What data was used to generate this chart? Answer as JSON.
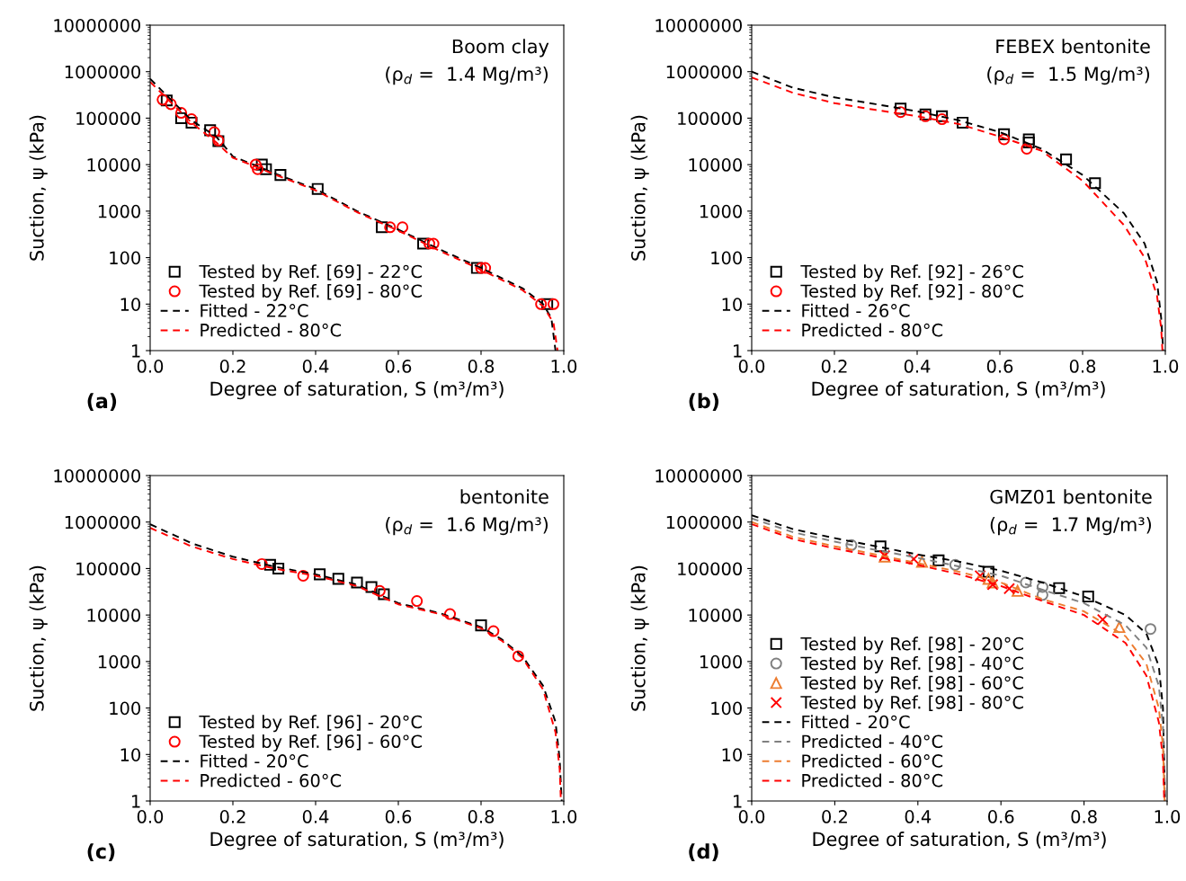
{
  "chart_data": [
    {
      "type": "scatter",
      "title": "(a)",
      "xlabel": "Degree of saturation, S (m³/m³)",
      "ylabel": "Suction, ψ (kPa)",
      "annotations": [
        "Boom clay",
        "(ρ$_{d}$ =  1.4 Mg/m³)"
      ],
      "log": "y",
      "xlim": [
        0,
        1
      ],
      "xticks": [
        {
          "value": 0,
          "label": "0.0"
        },
        {
          "value": 0.2,
          "label": "0.2"
        },
        {
          "value": 0.4,
          "label": "0.4"
        },
        {
          "value": 0.6,
          "label": "0.6"
        },
        {
          "value": 0.8,
          "label": "0.8"
        },
        {
          "value": 1,
          "label": "1.0"
        }
      ],
      "ylim": [
        1,
        10000000
      ],
      "yticks": [
        1,
        10,
        100,
        1000,
        10000,
        100000,
        1000000,
        10000000
      ],
      "legend": "bottom left",
      "grid": false,
      "series": [
        {
          "name": "Tested by Ref. [69] - 22°C",
          "marker": "square",
          "color": "#000000",
          "x": [
            0.04,
            0.075,
            0.1,
            0.145,
            0.165,
            0.27,
            0.28,
            0.315,
            0.405,
            0.56,
            0.66,
            0.79,
            0.96
          ],
          "values": [
            240000,
            100000,
            80000,
            55000,
            32000,
            10000,
            8000,
            6000,
            3000,
            450,
            200,
            60,
            10
          ]
        },
        {
          "name": "Tested by Ref. [69] - 80°C",
          "marker": "circle",
          "color": "#ff0000",
          "x": [
            0.03,
            0.05,
            0.075,
            0.1,
            0.155,
            0.165,
            0.255,
            0.26,
            0.58,
            0.61,
            0.675,
            0.685,
            0.8,
            0.81,
            0.945,
            0.975
          ],
          "values": [
            250000,
            200000,
            130000,
            95000,
            50000,
            33000,
            10000,
            8000,
            450,
            450,
            200,
            200,
            60,
            60,
            10,
            10
          ]
        },
        {
          "name": "Fitted - 22°C",
          "type": "line",
          "line_style": "dashed",
          "color": "#000000",
          "x": [
            0,
            0.05,
            0.1,
            0.16,
            0.2,
            0.25,
            0.3,
            0.4,
            0.5,
            0.6,
            0.7,
            0.8,
            0.9,
            0.95,
            0.97,
            0.98
          ],
          "values": [
            700000,
            250000,
            90000,
            40000,
            15000,
            10000,
            6500,
            3000,
            1000,
            400,
            150,
            60,
            22,
            10,
            5,
            1
          ]
        },
        {
          "name": "Predicted - 80°C",
          "type": "line",
          "line_style": "dashed",
          "color": "#ff0000",
          "x": [
            0,
            0.05,
            0.1,
            0.16,
            0.2,
            0.25,
            0.3,
            0.4,
            0.5,
            0.6,
            0.7,
            0.8,
            0.9,
            0.95,
            0.975,
            0.985
          ],
          "values": [
            600000,
            220000,
            80000,
            30000,
            14000,
            9500,
            6200,
            2800,
            950,
            380,
            140,
            55,
            20,
            9,
            4,
            1
          ]
        }
      ]
    },
    {
      "type": "scatter",
      "title": "(b)",
      "xlabel": "Degree of saturation, S (m³/m³)",
      "ylabel": "Suction, ψ (kPa)",
      "annotations": [
        "FEBEX bentonite",
        "(ρ$_{d}$ =  1.5 Mg/m³)"
      ],
      "log": "y",
      "xlim": [
        0,
        1
      ],
      "xticks": [
        {
          "value": 0,
          "label": "0.0"
        },
        {
          "value": 0.2,
          "label": "0.2"
        },
        {
          "value": 0.4,
          "label": "0.4"
        },
        {
          "value": 0.6,
          "label": "0.6"
        },
        {
          "value": 0.8,
          "label": "0.8"
        },
        {
          "value": 1,
          "label": "1.0"
        }
      ],
      "ylim": [
        1,
        10000000
      ],
      "yticks": [
        1,
        10,
        100,
        1000,
        10000,
        100000,
        1000000,
        10000000
      ],
      "legend": "bottom left",
      "grid": false,
      "series": [
        {
          "name": "Tested by Ref. [92] - 26°C",
          "marker": "square",
          "color": "#000000",
          "x": [
            0.36,
            0.42,
            0.46,
            0.51,
            0.61,
            0.67,
            0.67,
            0.76,
            0.83
          ],
          "values": [
            160000,
            120000,
            110000,
            80000,
            45000,
            35000,
            30000,
            13000,
            4000
          ]
        },
        {
          "name": "Tested by Ref. [92] - 80°C",
          "marker": "circle",
          "color": "#ff0000",
          "x": [
            0.36,
            0.42,
            0.46,
            0.61,
            0.665
          ],
          "values": [
            135000,
            110000,
            95000,
            35000,
            22000
          ]
        },
        {
          "name": "Fitted - 26°C",
          "type": "line",
          "line_style": "dashed",
          "color": "#000000",
          "x": [
            0,
            0.1,
            0.2,
            0.3,
            0.4,
            0.5,
            0.6,
            0.7,
            0.8,
            0.9,
            0.95,
            0.98,
            0.99,
            0.995
          ],
          "values": [
            1000000,
            450000,
            280000,
            200000,
            140000,
            90000,
            50000,
            22000,
            6000,
            900,
            200,
            30,
            5,
            1
          ]
        },
        {
          "name": "Predicted - 80°C",
          "type": "line",
          "line_style": "dashed",
          "color": "#ff0000",
          "x": [
            0,
            0.1,
            0.2,
            0.3,
            0.4,
            0.5,
            0.6,
            0.7,
            0.8,
            0.9,
            0.95,
            0.98,
            0.99,
            0.993
          ],
          "values": [
            750000,
            350000,
            210000,
            150000,
            110000,
            75000,
            40000,
            20000,
            4500,
            500,
            100,
            15,
            3,
            1
          ]
        }
      ]
    },
    {
      "type": "scatter",
      "title": "(c)",
      "xlabel": "Degree of saturation, S (m³/m³)",
      "ylabel": "Suction, ψ (kPa)",
      "annotations": [
        "bentonite",
        "(ρ$_{d}$ =  1.6 Mg/m³)"
      ],
      "log": "y",
      "xlim": [
        0,
        1
      ],
      "xticks": [
        {
          "value": 0,
          "label": "0.0"
        },
        {
          "value": 0.2,
          "label": "0.2"
        },
        {
          "value": 0.4,
          "label": "0.4"
        },
        {
          "value": 0.6,
          "label": "0.6"
        },
        {
          "value": 0.8,
          "label": "0.8"
        },
        {
          "value": 1,
          "label": "1.0"
        }
      ],
      "ylim": [
        1,
        10000000
      ],
      "yticks": [
        1,
        10,
        100,
        1000,
        10000,
        100000,
        1000000,
        10000000
      ],
      "legend": "bottom left",
      "grid": false,
      "series": [
        {
          "name": "Tested by Ref. [96] - 20°C",
          "marker": "square",
          "color": "#000000",
          "x": [
            0.29,
            0.31,
            0.41,
            0.455,
            0.5,
            0.535,
            0.565,
            0.8
          ],
          "values": [
            120000,
            100000,
            75000,
            60000,
            50000,
            40000,
            28000,
            6000
          ]
        },
        {
          "name": "Tested by Ref. [96] - 60°C",
          "marker": "circle",
          "color": "#ff0000",
          "x": [
            0.27,
            0.37,
            0.555,
            0.645,
            0.725,
            0.83,
            0.89
          ],
          "values": [
            125000,
            70000,
            33000,
            20000,
            10500,
            4500,
            1300
          ]
        },
        {
          "name": "Fitted - 20°C",
          "type": "line",
          "line_style": "dashed",
          "color": "#000000",
          "x": [
            0,
            0.1,
            0.2,
            0.3,
            0.4,
            0.5,
            0.6,
            0.7,
            0.8,
            0.85,
            0.9,
            0.95,
            0.98,
            0.99,
            0.995
          ],
          "values": [
            900000,
            350000,
            180000,
            110000,
            75000,
            45000,
            18000,
            11000,
            5500,
            3000,
            1300,
            300,
            50,
            8,
            1
          ]
        },
        {
          "name": "Predicted - 60°C",
          "type": "line",
          "line_style": "dashed",
          "color": "#ff0000",
          "x": [
            0,
            0.1,
            0.2,
            0.3,
            0.4,
            0.5,
            0.6,
            0.7,
            0.8,
            0.85,
            0.9,
            0.95,
            0.98,
            0.99,
            0.993
          ],
          "values": [
            750000,
            300000,
            160000,
            100000,
            70000,
            42000,
            17000,
            10500,
            5200,
            2800,
            1200,
            250,
            30,
            5,
            1
          ]
        }
      ]
    },
    {
      "type": "scatter",
      "title": "(d)",
      "xlabel": "Degree of saturation, S (m³/m³)",
      "ylabel": "Suction, ψ (kPa)",
      "annotations": [
        "GMZ01 bentonite",
        "(ρ$_{d}$ =  1.7 Mg/m³)"
      ],
      "log": "y",
      "xlim": [
        0,
        1
      ],
      "xticks": [
        {
          "value": 0,
          "label": "0.0"
        },
        {
          "value": 0.2,
          "label": "0.2"
        },
        {
          "value": 0.4,
          "label": "0.4"
        },
        {
          "value": 0.6,
          "label": "0.6"
        },
        {
          "value": 0.8,
          "label": "0.8"
        },
        {
          "value": 1,
          "label": "1.0"
        }
      ],
      "ylim": [
        1,
        10000000
      ],
      "yticks": [
        1,
        10,
        100,
        1000,
        10000,
        100000,
        1000000,
        10000000
      ],
      "legend": "bottom left",
      "grid": false,
      "series": [
        {
          "name": "Tested by Ref. [98] - 20°C",
          "marker": "square",
          "color": "#000000",
          "x": [
            0.31,
            0.45,
            0.57,
            0.74,
            0.81
          ],
          "values": [
            300000,
            150000,
            85000,
            38000,
            25000
          ]
        },
        {
          "name": "Tested by Ref. [98] - 40°C",
          "marker": "circle",
          "color": "#808080",
          "x": [
            0.24,
            0.49,
            0.66,
            0.7,
            0.7,
            0.96
          ],
          "values": [
            320000,
            120000,
            50000,
            40000,
            27000,
            5000
          ]
        },
        {
          "name": "Tested by Ref. [98] - 60°C",
          "marker": "triangle",
          "color": "#ed7d31",
          "x": [
            0.32,
            0.41,
            0.57,
            0.58,
            0.64,
            0.885
          ],
          "values": [
            180000,
            140000,
            60000,
            50000,
            33000,
            5500
          ]
        },
        {
          "name": "Tested by Ref. [98] - 80°C",
          "marker": "cross",
          "color": "#ff0000",
          "x": [
            0.32,
            0.39,
            0.55,
            0.58,
            0.62,
            0.845
          ],
          "values": [
            190000,
            160000,
            70000,
            45000,
            37000,
            8000
          ]
        },
        {
          "name": "Fitted - 20°C",
          "type": "line",
          "line_style": "dashed",
          "color": "#000000",
          "x": [
            0,
            0.1,
            0.2,
            0.3,
            0.4,
            0.5,
            0.6,
            0.7,
            0.8,
            0.9,
            0.95,
            0.98,
            0.99,
            0.995
          ],
          "values": [
            1400000,
            700000,
            450000,
            300000,
            200000,
            140000,
            90000,
            50000,
            25000,
            10000,
            4000,
            800,
            100,
            1
          ]
        },
        {
          "name": "Predicted - 40°C",
          "type": "line",
          "line_style": "dashed",
          "color": "#808080",
          "x": [
            0,
            0.1,
            0.2,
            0.3,
            0.4,
            0.5,
            0.6,
            0.7,
            0.8,
            0.9,
            0.95,
            0.98,
            0.99,
            0.995
          ],
          "values": [
            1200000,
            600000,
            380000,
            250000,
            170000,
            110000,
            70000,
            35000,
            18000,
            6000,
            2000,
            300,
            40,
            1
          ]
        },
        {
          "name": "Predicted - 60°C",
          "type": "line",
          "line_style": "dashed",
          "color": "#ed7d31",
          "x": [
            0,
            0.1,
            0.2,
            0.3,
            0.4,
            0.5,
            0.6,
            0.7,
            0.8,
            0.9,
            0.95,
            0.98,
            0.99,
            0.994
          ],
          "values": [
            1000000,
            480000,
            300000,
            200000,
            130000,
            85000,
            50000,
            22000,
            12000,
            3500,
            900,
            100,
            15,
            1
          ]
        },
        {
          "name": "Predicted - 80°C",
          "type": "line",
          "line_style": "dashed",
          "color": "#ff0000",
          "x": [
            0,
            0.1,
            0.2,
            0.3,
            0.4,
            0.5,
            0.6,
            0.7,
            0.8,
            0.9,
            0.95,
            0.98,
            0.99,
            0.993
          ],
          "values": [
            900000,
            430000,
            270000,
            180000,
            120000,
            75000,
            42000,
            20000,
            10000,
            2500,
            500,
            50,
            8,
            1
          ]
        }
      ]
    }
  ]
}
